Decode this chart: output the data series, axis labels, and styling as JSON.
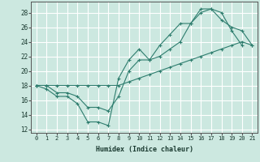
{
  "title": "",
  "xlabel": "Humidex (Indice chaleur)",
  "bg_color": "#cce8e0",
  "grid_color": "#ffffff",
  "line_color": "#2e7d6e",
  "xlim": [
    -0.5,
    21.5
  ],
  "ylim": [
    11.5,
    29.5
  ],
  "xticks": [
    0,
    1,
    2,
    3,
    4,
    5,
    6,
    7,
    8,
    9,
    10,
    11,
    12,
    13,
    14,
    15,
    16,
    17,
    18,
    19,
    20,
    21
  ],
  "yticks": [
    12,
    14,
    16,
    18,
    20,
    22,
    24,
    26,
    28
  ],
  "line1_x": [
    0,
    1,
    2,
    3,
    4,
    5,
    6,
    7,
    8,
    9,
    10,
    11,
    12,
    13,
    14,
    15,
    16,
    17,
    18,
    19,
    20
  ],
  "line1_y": [
    18,
    17.5,
    16.5,
    16.5,
    15.5,
    13,
    13,
    12.5,
    19,
    21.5,
    23,
    21.5,
    23.5,
    25,
    26.5,
    26.5,
    28.5,
    28.5,
    28,
    25.5,
    23.5
  ],
  "line2_x": [
    0,
    1,
    2,
    3,
    4,
    5,
    6,
    7,
    8,
    9,
    10,
    11,
    12,
    13,
    14,
    15,
    16,
    17,
    18,
    19,
    20,
    21
  ],
  "line2_y": [
    18,
    18,
    18,
    18,
    18,
    18,
    18,
    18,
    18,
    18.5,
    19,
    19.5,
    20,
    20.5,
    21,
    21.5,
    22,
    22.5,
    23,
    23.5,
    24,
    23.5
  ],
  "line3_x": [
    0,
    1,
    2,
    3,
    4,
    5,
    6,
    7,
    8,
    9,
    10,
    11,
    12,
    13,
    14,
    15,
    16,
    17,
    18,
    19,
    20,
    21
  ],
  "line3_y": [
    18,
    18,
    17,
    17,
    16.5,
    15,
    15,
    14.5,
    16.5,
    20,
    21.5,
    21.5,
    22,
    23,
    24,
    26.5,
    28,
    28.5,
    27,
    26,
    25.5,
    23.5
  ]
}
